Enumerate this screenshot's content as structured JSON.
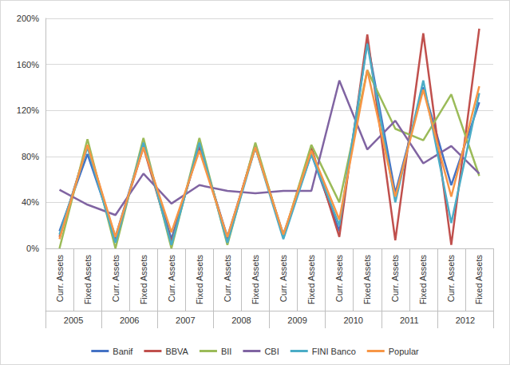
{
  "chart_data": {
    "type": "line",
    "categories": [
      "Curr. Assets",
      "Fixed Assets",
      "Curr. Assets",
      "Fixed Assets",
      "Curr. Assets",
      "Fixed Assets",
      "Curr. Assets",
      "Fixed Assets",
      "Curr. Assets",
      "Fixed Assets",
      "Curr. Assets",
      "Fixed Assets",
      "Curr. Assets",
      "Fixed Assets",
      "Curr. Assets",
      "Fixed Assets"
    ],
    "x_groups": [
      "2005",
      "2006",
      "2007",
      "2008",
      "2009",
      "2010",
      "2011",
      "2012"
    ],
    "series": [
      {
        "name": "Banif",
        "color": "#4472c4",
        "values": [
          15,
          82,
          10,
          90,
          8,
          88,
          10,
          88,
          12,
          82,
          15,
          180,
          48,
          140,
          55,
          127
        ]
      },
      {
        "name": "BBVA",
        "color": "#c0504d",
        "values": [
          10,
          90,
          8,
          88,
          5,
          90,
          8,
          90,
          10,
          88,
          10,
          186,
          7,
          187,
          3,
          191
        ]
      },
      {
        "name": "BII",
        "color": "#9bbb59",
        "values": [
          0,
          95,
          0,
          96,
          0,
          96,
          3,
          92,
          10,
          90,
          40,
          155,
          104,
          94,
          134,
          63
        ]
      },
      {
        "name": "CBI",
        "color": "#8064a2",
        "values": [
          51,
          38,
          29,
          65,
          39,
          55,
          50,
          48,
          50,
          50,
          146,
          86,
          111,
          74,
          89,
          65
        ]
      },
      {
        "name": "FINI Banco",
        "color": "#4bacc6",
        "values": [
          12,
          88,
          5,
          92,
          3,
          92,
          5,
          88,
          8,
          82,
          20,
          178,
          40,
          146,
          22,
          135
        ]
      },
      {
        "name": "Popular",
        "color": "#f79646",
        "values": [
          8,
          90,
          10,
          88,
          14,
          85,
          10,
          88,
          12,
          85,
          25,
          155,
          45,
          138,
          45,
          141
        ]
      }
    ],
    "ylim": [
      0,
      200
    ],
    "yticks": [
      {
        "value": 0,
        "label": "0%"
      },
      {
        "value": 40,
        "label": "40%"
      },
      {
        "value": 80,
        "label": "80%"
      },
      {
        "value": 120,
        "label": "120%"
      },
      {
        "value": 160,
        "label": "160%"
      },
      {
        "value": 200,
        "label": "200%"
      }
    ],
    "grid": true,
    "legend": "bottom",
    "marker": "none"
  }
}
